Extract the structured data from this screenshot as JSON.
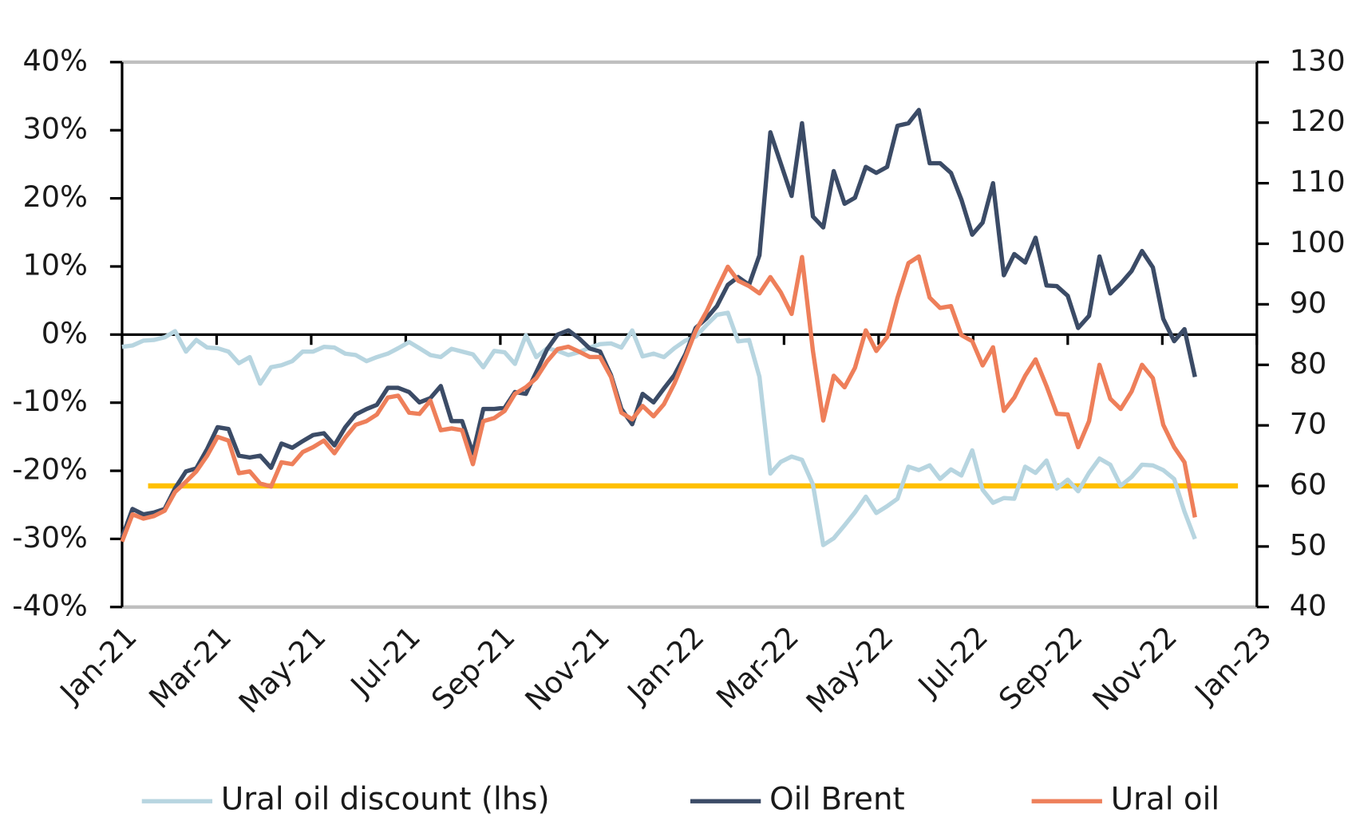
{
  "chart_data": {
    "type": "line",
    "x": [
      0,
      0.22,
      0.45,
      0.67,
      0.9,
      1.12,
      1.35,
      1.57,
      1.8,
      2.02,
      2.25,
      2.47,
      2.7,
      2.92,
      3.15,
      3.37,
      3.6,
      3.82,
      4.04,
      4.27,
      4.49,
      4.72,
      4.94,
      5.17,
      5.39,
      5.62,
      5.84,
      6.07,
      6.29,
      6.52,
      6.74,
      6.97,
      7.19,
      7.42,
      7.64,
      7.87,
      8.09,
      8.31,
      8.54,
      8.76,
      8.99,
      9.21,
      9.44,
      9.66,
      9.89,
      10.11,
      10.34,
      10.56,
      10.79,
      11.01,
      11.24,
      11.46,
      11.68,
      11.91,
      12.13,
      12.36,
      12.58,
      12.81,
      13.03,
      13.26,
      13.48,
      13.71,
      13.93,
      14.16,
      14.38,
      14.61,
      14.83,
      15.05,
      15.28,
      15.5,
      15.73,
      15.95,
      16.18,
      16.4,
      16.63,
      16.85,
      17.08,
      17.3,
      17.53,
      17.75,
      17.98,
      18.2,
      18.42,
      18.65,
      18.87,
      19.1,
      19.32,
      19.55,
      19.77,
      20.0,
      20.22,
      20.45,
      20.67,
      20.9,
      21.12,
      21.35,
      21.57,
      21.8,
      22.02,
      22.25,
      22.47,
      22.69
    ],
    "xlim": [
      0,
      24
    ],
    "xticks": [
      {
        "value": 0,
        "label": "Jan-21"
      },
      {
        "value": 2,
        "label": "Mar-21"
      },
      {
        "value": 4,
        "label": "May-21"
      },
      {
        "value": 6,
        "label": "Jul-21"
      },
      {
        "value": 8,
        "label": "Sep-21"
      },
      {
        "value": 10,
        "label": "Nov-21"
      },
      {
        "value": 12,
        "label": "Jan-22"
      },
      {
        "value": 14,
        "label": "Mar-22"
      },
      {
        "value": 16,
        "label": "May-22"
      },
      {
        "value": 18,
        "label": "Jul-22"
      },
      {
        "value": 20,
        "label": "Sep-22"
      },
      {
        "value": 22,
        "label": "Nov-22"
      },
      {
        "value": 24,
        "label": "Jan-23"
      }
    ],
    "ylim": [
      -40,
      40
    ],
    "yticks": [
      {
        "value": -40,
        "label": "-40%"
      },
      {
        "value": -30,
        "label": "-30%"
      },
      {
        "value": -20,
        "label": "-20%"
      },
      {
        "value": -10,
        "label": "-10%"
      },
      {
        "value": 0,
        "label": "0%"
      },
      {
        "value": 10,
        "label": "10%"
      },
      {
        "value": 20,
        "label": "20%"
      },
      {
        "value": 30,
        "label": "30%"
      },
      {
        "value": 40,
        "label": "40%"
      }
    ],
    "y2lim": [
      40,
      130
    ],
    "y2ticks": [
      40,
      50,
      60,
      70,
      80,
      90,
      100,
      110,
      120,
      130
    ],
    "reference_line": {
      "value": 60,
      "axis": "y2",
      "x": [
        0.55,
        23.6
      ],
      "color": "#ffc000"
    },
    "series": [
      {
        "name": "Ural oil discount (lhs)",
        "color": "#b7d5e0",
        "axis": "y",
        "values": [
          -1.8,
          -1.6,
          -0.9,
          -0.8,
          -0.4,
          0.5,
          -2.5,
          -0.8,
          -1.9,
          -2.0,
          -2.5,
          -4.2,
          -3.3,
          -7.2,
          -4.8,
          -4.5,
          -3.9,
          -2.5,
          -2.5,
          -1.8,
          -1.9,
          -2.8,
          -3.0,
          -3.9,
          -3.3,
          -2.8,
          -2.0,
          -1.1,
          -2.0,
          -3.0,
          -3.3,
          -2.1,
          -2.5,
          -2.9,
          -4.8,
          -2.4,
          -2.6,
          -4.3,
          -0.1,
          -3.3,
          -2.0,
          -2.4,
          -3.0,
          -2.6,
          -1.9,
          -1.4,
          -1.3,
          -1.9,
          0.6,
          -3.2,
          -2.8,
          -3.3,
          -2.0,
          -0.9,
          -0.3,
          1.4,
          2.9,
          3.2,
          -1.0,
          -0.8,
          -6.2,
          -20.4,
          -18.7,
          -17.9,
          -18.4,
          -22.0,
          -30.9,
          -29.9,
          -28.0,
          -26.1,
          -23.8,
          -26.2,
          -25.2,
          -24.1,
          -19.4,
          -19.9,
          -19.2,
          -21.2,
          -19.8,
          -20.7,
          -17.0,
          -22.8,
          -24.7,
          -24.0,
          -24.1,
          -19.4,
          -20.3,
          -18.5,
          -22.6,
          -21.3,
          -23.0,
          -20.3,
          -18.2,
          -19.1,
          -22.2,
          -20.9,
          -19.1,
          -19.2,
          -19.9,
          -21.2,
          -26.0,
          -30.0
        ]
      },
      {
        "name": "Oil Brent",
        "color": "#3b4b66",
        "axis": "y2",
        "values": [
          51.5,
          56.2,
          55.3,
          55.6,
          56.2,
          59.6,
          62.4,
          62.9,
          66.1,
          69.7,
          69.4,
          65.0,
          64.7,
          65.0,
          63.0,
          67.0,
          66.3,
          67.4,
          68.4,
          68.7,
          66.7,
          69.7,
          71.8,
          72.7,
          73.4,
          76.2,
          76.2,
          75.5,
          73.8,
          74.5,
          76.5,
          70.7,
          70.7,
          65.4,
          72.7,
          72.7,
          72.9,
          75.5,
          75.2,
          78.8,
          82.6,
          85.0,
          85.7,
          84.4,
          82.7,
          82.2,
          78.3,
          72.7,
          70.2,
          75.2,
          73.8,
          76.1,
          78.3,
          81.7,
          86.1,
          87.7,
          89.7,
          93.2,
          94.5,
          93.2,
          98.1,
          118.4,
          113.3,
          107.9,
          119.9,
          104.5,
          102.7,
          112.0,
          106.6,
          107.6,
          112.7,
          111.7,
          112.7,
          119.5,
          119.9,
          122.1,
          113.3,
          113.3,
          111.7,
          107.3,
          101.5,
          103.5,
          110.0,
          94.8,
          98.3,
          96.9,
          101.0,
          93.1,
          93.0,
          91.4,
          86.1,
          88.1,
          97.9,
          91.8,
          93.4,
          95.5,
          98.8,
          96.1,
          87.6,
          83.9,
          85.9,
          78.0
        ]
      },
      {
        "name": "Ural oil",
        "color": "#ee7f5a",
        "axis": "y2",
        "values": [
          50.8,
          55.3,
          54.6,
          55.0,
          55.9,
          59.0,
          60.7,
          62.4,
          65.0,
          68.1,
          67.5,
          62.1,
          62.4,
          60.4,
          59.9,
          63.9,
          63.6,
          65.6,
          66.4,
          67.5,
          65.4,
          68.0,
          70.1,
          70.7,
          71.8,
          74.6,
          74.9,
          72.1,
          71.9,
          74.1,
          69.2,
          69.5,
          69.2,
          63.6,
          70.7,
          71.2,
          72.4,
          75.2,
          76.3,
          77.8,
          80.6,
          82.6,
          83.0,
          82.2,
          81.3,
          81.3,
          78.0,
          72.1,
          71.0,
          73.2,
          71.5,
          73.5,
          76.9,
          81.2,
          85.6,
          88.8,
          92.5,
          96.2,
          93.9,
          93.0,
          91.8,
          94.5,
          92.0,
          88.4,
          97.8,
          82.3,
          70.8,
          78.2,
          76.3,
          79.5,
          85.7,
          82.3,
          84.6,
          91.1,
          96.8,
          97.9,
          91.1,
          89.4,
          89.7,
          84.9,
          83.9,
          79.9,
          82.9,
          72.4,
          74.6,
          78.2,
          80.9,
          76.5,
          71.9,
          71.8,
          66.4,
          70.7,
          80.0,
          74.4,
          72.7,
          75.6,
          80.0,
          77.8,
          70.1,
          66.4,
          63.9,
          54.8
        ]
      }
    ]
  }
}
